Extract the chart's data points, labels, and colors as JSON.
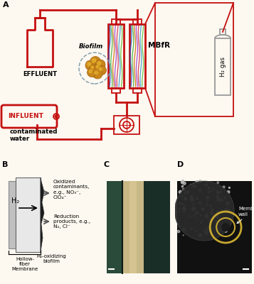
{
  "bg_color": "#fdf8f0",
  "panel_labels": [
    "A",
    "B",
    "C",
    "D"
  ],
  "panel_label_fontsize": 8,
  "panel_label_weight": "bold",
  "red_color": "#c41010",
  "label_effluent": "EFFLUENT",
  "label_mbfr": "MBfR",
  "label_biofilm": "Biofilm",
  "label_h2gas": "H₂ gas",
  "label_influent": "INFLUENT",
  "label_contam": "contaminated\nwater",
  "label_hollow": "Hollow-\nfiber\nMembrane",
  "label_h2ox": "H₂-oxidizing\nbiofilm",
  "label_h2": "H₂",
  "label_oxidized": "Oxidized\ncontaminants,\ne.g., NO₃⁻,\nClO₄⁻",
  "label_reduction": "Reduction\nproducts, e.g.,\nN₂, Cl⁻",
  "label_membrane_wall": "Membrane\nwall"
}
